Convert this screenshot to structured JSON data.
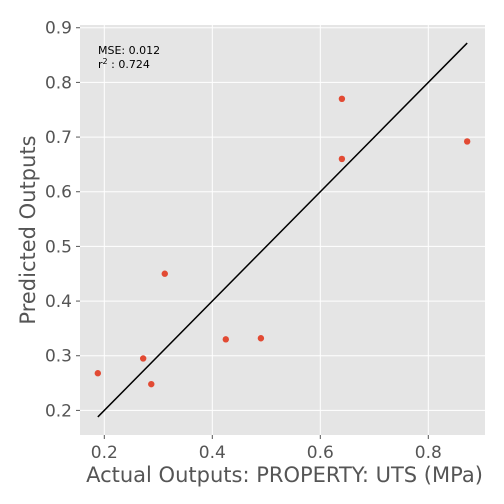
{
  "chart_data": {
    "type": "scatter",
    "xlabel": "Actual Outputs: PROPERTY: UTS (MPa)",
    "ylabel": "Predicted Outputs",
    "xlim": [
      0.155,
      0.905
    ],
    "ylim": [
      0.155,
      0.905
    ],
    "x_ticks": [
      0.2,
      0.4,
      0.6,
      0.8
    ],
    "x_tick_labels": [
      "0.2",
      "0.4",
      "0.6",
      "0.8"
    ],
    "y_ticks": [
      0.2,
      0.3,
      0.4,
      0.5,
      0.6,
      0.7,
      0.8,
      0.9
    ],
    "y_tick_labels": [
      "0.2",
      "0.3",
      "0.4",
      "0.5",
      "0.6",
      "0.7",
      "0.8",
      "0.9"
    ],
    "grid": true,
    "annotations": {
      "mse": "MSE: 0.012",
      "r2_prefix": "r",
      "r2_sup": "2",
      "r2_suffix": " : 0.724"
    },
    "fit_line": {
      "x": [
        0.188,
        0.872
      ],
      "y": [
        0.188,
        0.872
      ]
    },
    "points": [
      {
        "x": 0.188,
        "y": 0.268
      },
      {
        "x": 0.272,
        "y": 0.295
      },
      {
        "x": 0.287,
        "y": 0.248
      },
      {
        "x": 0.312,
        "y": 0.45
      },
      {
        "x": 0.425,
        "y": 0.33
      },
      {
        "x": 0.49,
        "y": 0.332
      },
      {
        "x": 0.64,
        "y": 0.77
      },
      {
        "x": 0.64,
        "y": 0.66
      },
      {
        "x": 0.872,
        "y": 0.692
      }
    ],
    "colors": {
      "background": "#e5e5e5",
      "grid": "#ffffff",
      "point": "#e24a33",
      "line": "#000000"
    }
  }
}
